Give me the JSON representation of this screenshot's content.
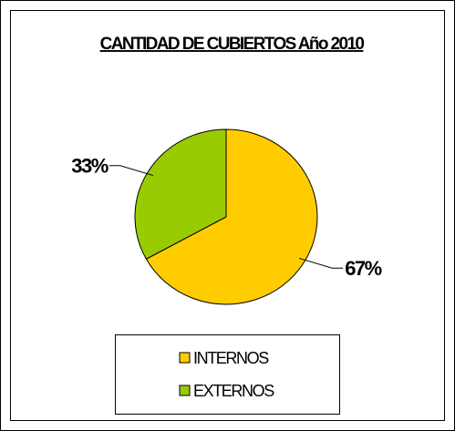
{
  "chart_data": {
    "type": "pie",
    "title": "CANTIDAD DE CUBIERTOS Año 2010",
    "categories": [
      "INTERNOS",
      "EXTERNOS"
    ],
    "values": [
      67,
      33
    ],
    "value_labels": [
      "67%",
      "33%"
    ],
    "colors": [
      "#FFCC00",
      "#99CC00"
    ],
    "legend": "bottom"
  }
}
